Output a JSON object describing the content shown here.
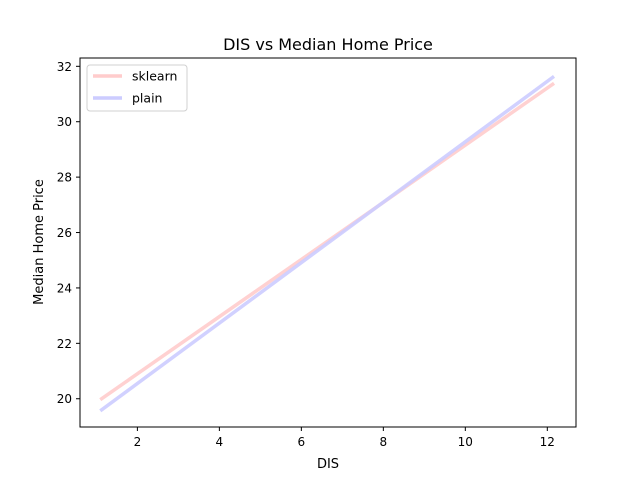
{
  "chart_data": {
    "type": "line",
    "title": "DIS vs Median Home Price",
    "xlabel": "DIS",
    "ylabel": "Median Home Price",
    "xlim": [
      0.6,
      12.7
    ],
    "ylim": [
      18.98,
      32.3
    ],
    "xticks": [
      2,
      4,
      6,
      8,
      10,
      12
    ],
    "yticks": [
      20,
      22,
      24,
      26,
      28,
      30,
      32
    ],
    "grid": false,
    "legend_position": "top-left",
    "series": [
      {
        "name": "sklearn",
        "color": "#ffcccc",
        "x": [
          1.13,
          12.13
        ],
        "y": [
          20.0,
          31.35
        ]
      },
      {
        "name": "plain",
        "color": "#ccccff",
        "x": [
          1.13,
          12.13
        ],
        "y": [
          19.6,
          31.6
        ]
      }
    ]
  }
}
